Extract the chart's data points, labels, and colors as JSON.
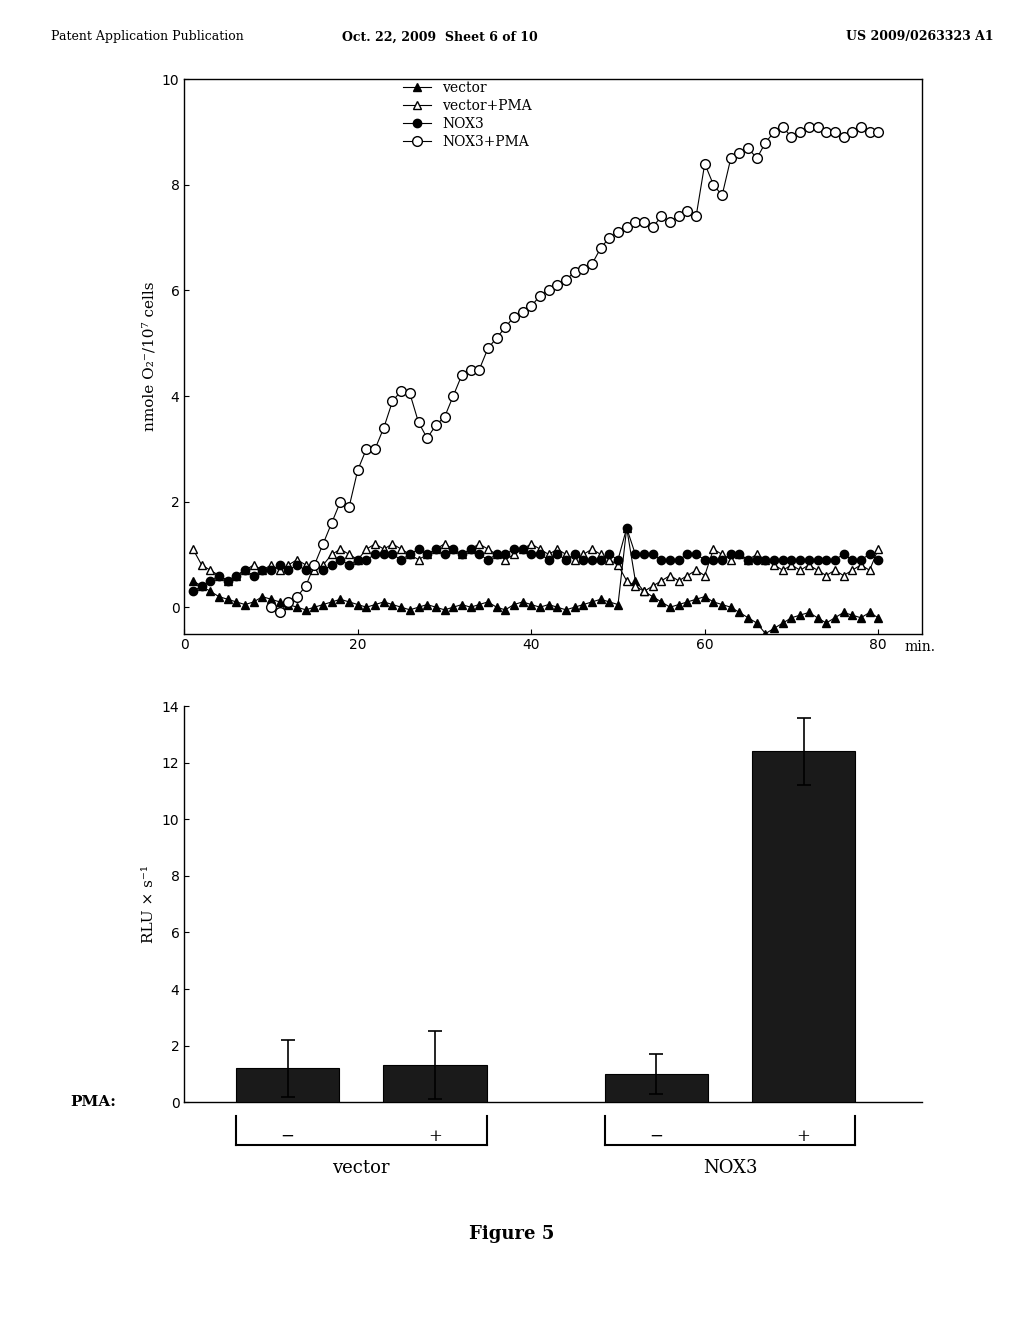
{
  "top_plot": {
    "ylabel": "nmole O₂⁻/10⁷ cells",
    "xlabel_label": "min.",
    "xlim": [
      0,
      85
    ],
    "ylim": [
      -0.5,
      10
    ],
    "yticks": [
      0,
      2,
      4,
      6,
      8,
      10
    ],
    "xticks": [
      0,
      20,
      40,
      60,
      80
    ],
    "legend": [
      "vector",
      "vector+PMA",
      "NOX3",
      "NOX3+PMA"
    ],
    "vector_x": [
      1,
      2,
      3,
      4,
      5,
      6,
      7,
      8,
      9,
      10,
      11,
      12,
      13,
      14,
      15,
      16,
      17,
      18,
      19,
      20,
      21,
      22,
      23,
      24,
      25,
      26,
      27,
      28,
      29,
      30,
      31,
      32,
      33,
      34,
      35,
      36,
      37,
      38,
      39,
      40,
      41,
      42,
      43,
      44,
      45,
      46,
      47,
      48,
      49,
      50,
      51,
      52,
      53,
      54,
      55,
      56,
      57,
      58,
      59,
      60,
      61,
      62,
      63,
      64,
      65,
      66,
      67,
      68,
      69,
      70,
      71,
      72,
      73,
      74,
      75,
      76,
      77,
      78,
      79,
      80
    ],
    "vector_y": [
      0.5,
      0.4,
      0.3,
      0.2,
      0.15,
      0.1,
      0.05,
      0.1,
      0.2,
      0.15,
      0.1,
      0.05,
      0.0,
      -0.05,
      0.0,
      0.05,
      0.1,
      0.15,
      0.1,
      0.05,
      0.0,
      0.05,
      0.1,
      0.05,
      0.0,
      -0.05,
      0.0,
      0.05,
      0.0,
      -0.05,
      0.0,
      0.05,
      0.0,
      0.05,
      0.1,
      0.0,
      -0.05,
      0.05,
      0.1,
      0.05,
      0.0,
      0.05,
      0.0,
      -0.05,
      0.0,
      0.05,
      0.1,
      0.15,
      0.1,
      0.05,
      1.5,
      0.5,
      0.3,
      0.2,
      0.1,
      0.0,
      0.05,
      0.1,
      0.15,
      0.2,
      0.1,
      0.05,
      0.0,
      -0.1,
      -0.2,
      -0.3,
      -0.5,
      -0.4,
      -0.3,
      -0.2,
      -0.15,
      -0.1,
      -0.2,
      -0.3,
      -0.2,
      -0.1,
      -0.15,
      -0.2,
      -0.1,
      -0.2
    ],
    "vector_pma_x": [
      1,
      2,
      3,
      4,
      5,
      6,
      7,
      8,
      9,
      10,
      11,
      12,
      13,
      14,
      15,
      16,
      17,
      18,
      19,
      20,
      21,
      22,
      23,
      24,
      25,
      26,
      27,
      28,
      29,
      30,
      31,
      32,
      33,
      34,
      35,
      36,
      37,
      38,
      39,
      40,
      41,
      42,
      43,
      44,
      45,
      46,
      47,
      48,
      49,
      50,
      51,
      52,
      53,
      54,
      55,
      56,
      57,
      58,
      59,
      60,
      61,
      62,
      63,
      64,
      65,
      66,
      67,
      68,
      69,
      70,
      71,
      72,
      73,
      74,
      75,
      76,
      77,
      78,
      79,
      80
    ],
    "vector_pma_y": [
      1.1,
      0.8,
      0.7,
      0.6,
      0.5,
      0.6,
      0.7,
      0.8,
      0.7,
      0.8,
      0.7,
      0.8,
      0.9,
      0.8,
      0.7,
      0.8,
      1.0,
      1.1,
      1.0,
      0.9,
      1.1,
      1.2,
      1.1,
      1.2,
      1.1,
      1.0,
      0.9,
      1.0,
      1.1,
      1.2,
      1.1,
      1.0,
      1.1,
      1.2,
      1.1,
      1.0,
      0.9,
      1.0,
      1.1,
      1.2,
      1.1,
      1.0,
      1.1,
      1.0,
      0.9,
      1.0,
      1.1,
      1.0,
      0.9,
      0.8,
      0.5,
      0.4,
      0.3,
      0.4,
      0.5,
      0.6,
      0.5,
      0.6,
      0.7,
      0.6,
      1.1,
      1.0,
      0.9,
      1.0,
      0.9,
      1.0,
      0.9,
      0.8,
      0.7,
      0.8,
      0.7,
      0.8,
      0.7,
      0.6,
      0.7,
      0.6,
      0.7,
      0.8,
      0.7,
      1.1
    ],
    "nox3_x": [
      1,
      2,
      3,
      4,
      5,
      6,
      7,
      8,
      9,
      10,
      11,
      12,
      13,
      14,
      15,
      16,
      17,
      18,
      19,
      20,
      21,
      22,
      23,
      24,
      25,
      26,
      27,
      28,
      29,
      30,
      31,
      32,
      33,
      34,
      35,
      36,
      37,
      38,
      39,
      40,
      41,
      42,
      43,
      44,
      45,
      46,
      47,
      48,
      49,
      50,
      51,
      52,
      53,
      54,
      55,
      56,
      57,
      58,
      59,
      60,
      61,
      62,
      63,
      64,
      65,
      66,
      67,
      68,
      69,
      70,
      71,
      72,
      73,
      74,
      75,
      76,
      77,
      78,
      79,
      80
    ],
    "nox3_y": [
      0.3,
      0.4,
      0.5,
      0.6,
      0.5,
      0.6,
      0.7,
      0.6,
      0.7,
      0.7,
      0.8,
      0.7,
      0.8,
      0.7,
      0.8,
      0.7,
      0.8,
      0.9,
      0.8,
      0.9,
      0.9,
      1.0,
      1.0,
      1.0,
      0.9,
      1.0,
      1.1,
      1.0,
      1.1,
      1.0,
      1.1,
      1.0,
      1.1,
      1.0,
      0.9,
      1.0,
      1.0,
      1.1,
      1.1,
      1.0,
      1.0,
      0.9,
      1.0,
      0.9,
      1.0,
      0.9,
      0.9,
      0.9,
      1.0,
      0.9,
      1.5,
      1.0,
      1.0,
      1.0,
      0.9,
      0.9,
      0.9,
      1.0,
      1.0,
      0.9,
      0.9,
      0.9,
      1.0,
      1.0,
      0.9,
      0.9,
      0.9,
      0.9,
      0.9,
      0.9,
      0.9,
      0.9,
      0.9,
      0.9,
      0.9,
      1.0,
      0.9,
      0.9,
      1.0,
      0.9
    ],
    "nox3_pma_x": [
      10,
      11,
      12,
      13,
      14,
      15,
      16,
      17,
      18,
      19,
      20,
      21,
      22,
      23,
      24,
      25,
      26,
      27,
      28,
      29,
      30,
      31,
      32,
      33,
      34,
      35,
      36,
      37,
      38,
      39,
      40,
      41,
      42,
      43,
      44,
      45,
      46,
      47,
      48,
      49,
      50,
      51,
      52,
      53,
      54,
      55,
      56,
      57,
      58,
      59,
      60,
      61,
      62,
      63,
      64,
      65,
      66,
      67,
      68,
      69,
      70,
      71,
      72,
      73,
      74,
      75,
      76,
      77,
      78,
      79,
      80
    ],
    "nox3_pma_y": [
      0.0,
      -0.1,
      0.1,
      0.2,
      0.4,
      0.8,
      1.2,
      1.6,
      2.0,
      1.9,
      2.6,
      3.0,
      3.0,
      3.4,
      3.9,
      4.1,
      4.05,
      3.5,
      3.2,
      3.45,
      3.6,
      4.0,
      4.4,
      4.5,
      4.5,
      4.9,
      5.1,
      5.3,
      5.5,
      5.6,
      5.7,
      5.9,
      6.0,
      6.1,
      6.2,
      6.35,
      6.4,
      6.5,
      6.8,
      7.0,
      7.1,
      7.2,
      7.3,
      7.3,
      7.2,
      7.4,
      7.3,
      7.4,
      7.5,
      7.4,
      8.4,
      8.0,
      7.8,
      8.5,
      8.6,
      8.7,
      8.5,
      8.8,
      9.0,
      9.1,
      8.9,
      9.0,
      9.1,
      9.1,
      9.0,
      9.0,
      8.9,
      9.0,
      9.1,
      9.0,
      9.0
    ]
  },
  "bottom_plot": {
    "bar_values": [
      1.2,
      1.3,
      1.0,
      12.4
    ],
    "bar_errors": [
      1.0,
      1.2,
      0.7,
      1.2
    ],
    "bar_color": "#1a1a1a",
    "ylabel": "RLU × s⁻¹",
    "ylim": [
      0,
      14
    ],
    "yticks": [
      0,
      2,
      4,
      6,
      8,
      10,
      12,
      14
    ],
    "group_labels": [
      "vector",
      "NOX3"
    ],
    "pma_signs": [
      "−",
      "+",
      "−",
      "+"
    ],
    "pma_label": "PMA:",
    "figure_label": "Figure 5"
  },
  "header": {
    "left": "Patent Application Publication",
    "center": "Oct. 22, 2009  Sheet 6 of 10",
    "right": "US 2009/0263323 A1"
  },
  "background_color": "#ffffff"
}
